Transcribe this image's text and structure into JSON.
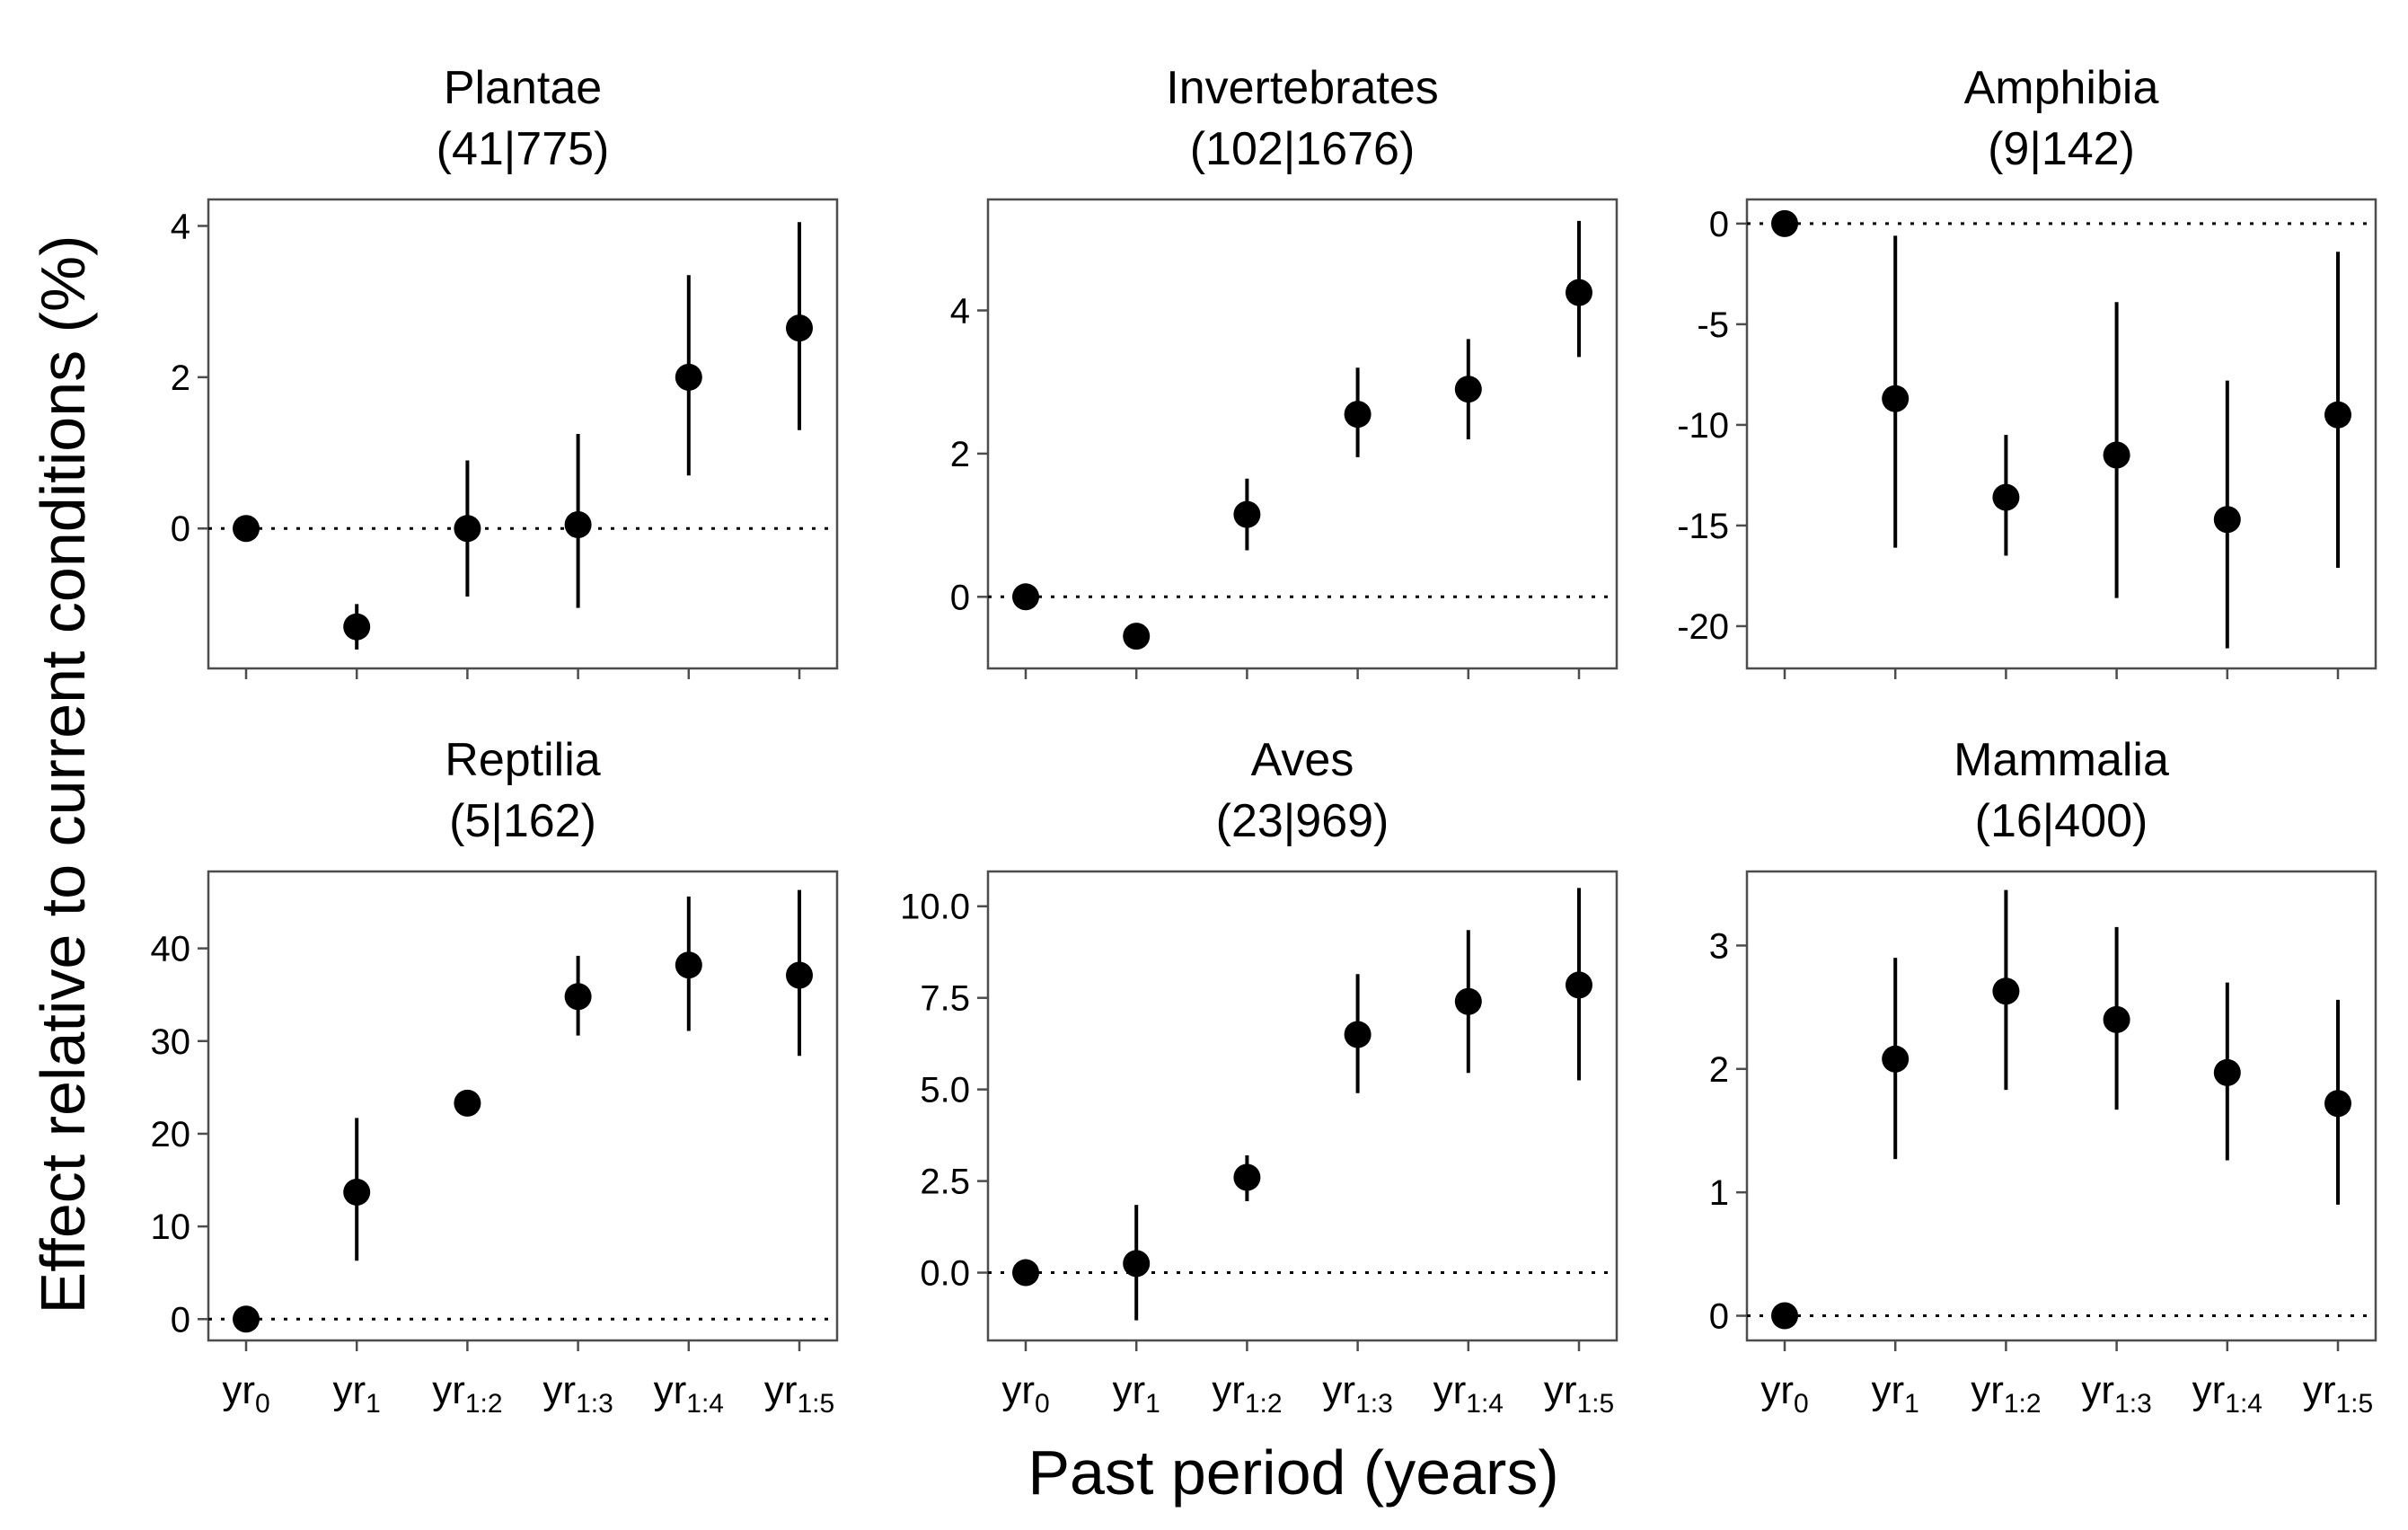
{
  "axis_titles": {
    "y": "Effect relative to current conditions (%)",
    "x": "Past period (years)"
  },
  "chart_data": [
    {
      "type": "scatter",
      "title": "Plantae",
      "subtitle": "(41|775)",
      "categories": [
        {
          "base": "yr",
          "sub": "0"
        },
        {
          "base": "yr",
          "sub": "1"
        },
        {
          "base": "yr",
          "sub": "1:2"
        },
        {
          "base": "yr",
          "sub": "1:3"
        },
        {
          "base": "yr",
          "sub": "1:4"
        },
        {
          "base": "yr",
          "sub": "1:5"
        }
      ],
      "values": [
        0.0,
        -1.3,
        0.0,
        0.05,
        2.0,
        2.65
      ],
      "lower": [
        null,
        -1.6,
        -0.9,
        -1.05,
        0.7,
        1.3
      ],
      "upper": [
        null,
        -1.0,
        0.9,
        1.25,
        3.35,
        4.05
      ],
      "ylim": [
        -1.85,
        4.35
      ],
      "yticks": [
        0,
        2,
        4
      ],
      "reference_line": 0,
      "show_x_tick_labels": false
    },
    {
      "type": "scatter",
      "title": "Invertebrates",
      "subtitle": "(102|1676)",
      "categories": [
        {
          "base": "yr",
          "sub": "0"
        },
        {
          "base": "yr",
          "sub": "1"
        },
        {
          "base": "yr",
          "sub": "1:2"
        },
        {
          "base": "yr",
          "sub": "1:3"
        },
        {
          "base": "yr",
          "sub": "1:4"
        },
        {
          "base": "yr",
          "sub": "1:5"
        }
      ],
      "values": [
        0.0,
        -0.55,
        1.15,
        2.55,
        2.9,
        4.25
      ],
      "lower": [
        null,
        null,
        0.65,
        1.95,
        2.2,
        3.35
      ],
      "upper": [
        null,
        null,
        1.65,
        3.2,
        3.6,
        5.25
      ],
      "ylim": [
        -1.0,
        5.55
      ],
      "yticks": [
        0,
        2,
        4
      ],
      "reference_line": 0,
      "show_x_tick_labels": false
    },
    {
      "type": "scatter",
      "title": "Amphibia",
      "subtitle": "(9|142)",
      "categories": [
        {
          "base": "yr",
          "sub": "0"
        },
        {
          "base": "yr",
          "sub": "1"
        },
        {
          "base": "yr",
          "sub": "1:2"
        },
        {
          "base": "yr",
          "sub": "1:3"
        },
        {
          "base": "yr",
          "sub": "1:4"
        },
        {
          "base": "yr",
          "sub": "1:5"
        }
      ],
      "values": [
        0.0,
        -8.7,
        -13.6,
        -11.5,
        -14.7,
        -9.5
      ],
      "lower": [
        null,
        -16.1,
        -16.5,
        -18.6,
        -21.1,
        -17.1
      ],
      "upper": [
        null,
        -0.6,
        -10.5,
        -3.9,
        -7.8,
        -1.4
      ],
      "ylim": [
        -22.1,
        1.2
      ],
      "yticks": [
        0,
        -5,
        -10,
        -15,
        -20
      ],
      "reference_line": 0,
      "show_x_tick_labels": false
    },
    {
      "type": "scatter",
      "title": "Reptilia",
      "subtitle": "(5|162)",
      "categories": [
        {
          "base": "yr",
          "sub": "0"
        },
        {
          "base": "yr",
          "sub": "1"
        },
        {
          "base": "yr",
          "sub": "1:2"
        },
        {
          "base": "yr",
          "sub": "1:3"
        },
        {
          "base": "yr",
          "sub": "1:4"
        },
        {
          "base": "yr",
          "sub": "1:5"
        }
      ],
      "values": [
        0.0,
        13.7,
        23.3,
        34.8,
        38.2,
        37.1
      ],
      "lower": [
        null,
        6.3,
        null,
        30.6,
        31.1,
        28.4
      ],
      "upper": [
        null,
        21.7,
        null,
        39.2,
        45.6,
        46.3
      ],
      "ylim": [
        -2.3,
        48.3
      ],
      "yticks": [
        0,
        10,
        20,
        30,
        40
      ],
      "reference_line": 0,
      "show_x_tick_labels": true
    },
    {
      "type": "scatter",
      "title": "Aves",
      "subtitle": "(23|969)",
      "categories": [
        {
          "base": "yr",
          "sub": "0"
        },
        {
          "base": "yr",
          "sub": "1"
        },
        {
          "base": "yr",
          "sub": "1:2"
        },
        {
          "base": "yr",
          "sub": "1:3"
        },
        {
          "base": "yr",
          "sub": "1:4"
        },
        {
          "base": "yr",
          "sub": "1:5"
        }
      ],
      "values": [
        0.0,
        0.25,
        2.6,
        6.5,
        7.4,
        7.85
      ],
      "lower": [
        null,
        -1.3,
        1.95,
        4.9,
        5.45,
        5.25
      ],
      "upper": [
        null,
        1.85,
        3.2,
        8.15,
        9.35,
        10.5
      ],
      "ylim": [
        -1.85,
        10.95
      ],
      "yticks": [
        0.0,
        2.5,
        5.0,
        7.5,
        10.0
      ],
      "ytick_labels": [
        "0.0",
        "2.5",
        "5.0",
        "7.5",
        "10.0"
      ],
      "reference_line": 0,
      "show_x_tick_labels": true
    },
    {
      "type": "scatter",
      "title": "Mammalia",
      "subtitle": "(16|400)",
      "categories": [
        {
          "base": "yr",
          "sub": "0"
        },
        {
          "base": "yr",
          "sub": "1"
        },
        {
          "base": "yr",
          "sub": "1:2"
        },
        {
          "base": "yr",
          "sub": "1:3"
        },
        {
          "base": "yr",
          "sub": "1:4"
        },
        {
          "base": "yr",
          "sub": "1:5"
        }
      ],
      "values": [
        0.0,
        2.08,
        2.63,
        2.4,
        1.97,
        1.72
      ],
      "lower": [
        null,
        1.27,
        1.83,
        1.67,
        1.26,
        0.9
      ],
      "upper": [
        null,
        2.9,
        3.45,
        3.15,
        2.7,
        2.56
      ],
      "ylim": [
        -0.2,
        3.6
      ],
      "yticks": [
        0,
        1,
        2,
        3
      ],
      "reference_line": 0,
      "show_x_tick_labels": true
    }
  ]
}
